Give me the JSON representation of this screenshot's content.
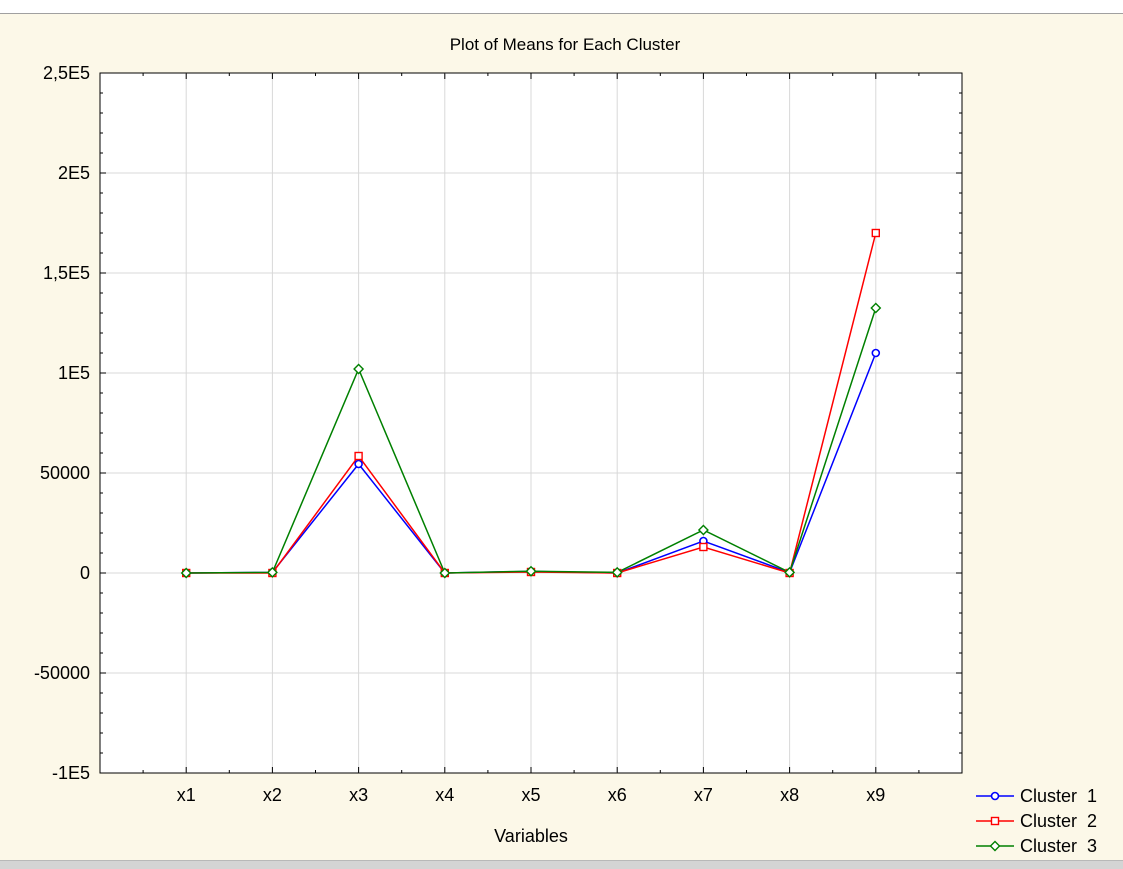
{
  "chart_data": {
    "type": "line",
    "title": "Plot of Means for Each Cluster",
    "xlabel": "Variables",
    "ylabel": "",
    "categories": [
      "x1",
      "x2",
      "x3",
      "x4",
      "x5",
      "x6",
      "x7",
      "x8",
      "x9"
    ],
    "ylim": [
      -100000,
      250000
    ],
    "yticks": [
      -100000,
      -50000,
      0,
      50000,
      100000,
      150000,
      200000,
      250000
    ],
    "ytick_labels": [
      "-1E5",
      "-50000",
      "0",
      "50000",
      "1E5",
      "1,5E5",
      "2E5",
      "2,5E5"
    ],
    "grid": true,
    "legend_position": "bottom-right",
    "series": [
      {
        "name": "Cluster  1",
        "color": "#0000ff",
        "marker": "circle",
        "values": [
          0,
          300,
          54500,
          0,
          800,
          0,
          16000,
          200,
          110000
        ]
      },
      {
        "name": "Cluster  2",
        "color": "#ff0000",
        "marker": "square",
        "values": [
          0,
          0,
          58500,
          0,
          500,
          0,
          13000,
          0,
          170000
        ]
      },
      {
        "name": "Cluster  3",
        "color": "#008000",
        "marker": "diamond",
        "values": [
          0,
          300,
          102000,
          0,
          900,
          300,
          21500,
          300,
          132500
        ]
      }
    ]
  }
}
